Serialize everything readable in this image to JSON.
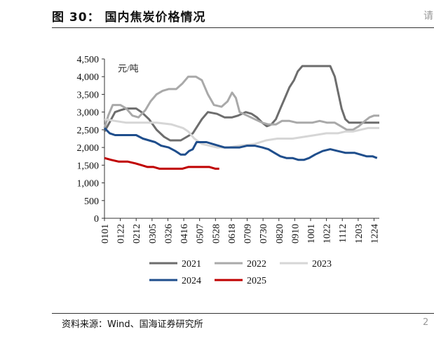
{
  "page": {
    "figure_title": "图 30：   国内焦炭价格情况",
    "source": "资料来源：Wind、国海证券研究所",
    "corner_mark": "请",
    "page_number": "2"
  },
  "chart_data": {
    "type": "line",
    "title": "",
    "unit_label": "元/吨",
    "xlabel": "",
    "ylabel": "元/吨",
    "ylim": [
      0,
      4500
    ],
    "y_ticks": [
      0,
      500,
      1000,
      1500,
      2000,
      2500,
      3000,
      3500,
      4000,
      4500
    ],
    "y_tick_labels": [
      "0",
      "500",
      "1,000",
      "1,500",
      "2,000",
      "2,500",
      "3,000",
      "3,500",
      "4,000",
      "4,500"
    ],
    "x_ticks": [
      "0101",
      "0122",
      "0212",
      "0305",
      "0326",
      "0416",
      "0507",
      "0528",
      "0618",
      "0709",
      "0730",
      "0820",
      "0910",
      "1001",
      "1022",
      "1112",
      "1203",
      "1224"
    ],
    "x_tick_day_of_year": [
      1,
      22,
      43,
      64,
      85,
      106,
      127,
      148,
      169,
      190,
      211,
      232,
      253,
      274,
      295,
      316,
      337,
      358
    ],
    "x_range_day_of_year": [
      1,
      365
    ],
    "series": [
      {
        "name": "2021",
        "color": "#6d6d6d",
        "points": [
          [
            1,
            2450
          ],
          [
            5,
            2600
          ],
          [
            10,
            2800
          ],
          [
            15,
            3000
          ],
          [
            22,
            3050
          ],
          [
            30,
            3100
          ],
          [
            43,
            3100
          ],
          [
            50,
            3000
          ],
          [
            60,
            2800
          ],
          [
            70,
            2500
          ],
          [
            80,
            2300
          ],
          [
            88,
            2200
          ],
          [
            95,
            2200
          ],
          [
            102,
            2200
          ],
          [
            110,
            2300
          ],
          [
            118,
            2400
          ],
          [
            124,
            2600
          ],
          [
            130,
            2800
          ],
          [
            138,
            3000
          ],
          [
            150,
            2950
          ],
          [
            160,
            2850
          ],
          [
            170,
            2850
          ],
          [
            178,
            2900
          ],
          [
            188,
            3000
          ],
          [
            196,
            2950
          ],
          [
            203,
            2850
          ],
          [
            210,
            2700
          ],
          [
            216,
            2600
          ],
          [
            222,
            2650
          ],
          [
            228,
            2800
          ],
          [
            234,
            3100
          ],
          [
            240,
            3400
          ],
          [
            246,
            3700
          ],
          [
            252,
            3900
          ],
          [
            257,
            4150
          ],
          [
            263,
            4300
          ],
          [
            275,
            4300
          ],
          [
            288,
            4300
          ],
          [
            300,
            4300
          ],
          [
            306,
            4000
          ],
          [
            310,
            3600
          ],
          [
            315,
            3100
          ],
          [
            320,
            2800
          ],
          [
            325,
            2700
          ],
          [
            335,
            2700
          ],
          [
            345,
            2700
          ],
          [
            355,
            2700
          ],
          [
            365,
            2700
          ]
        ]
      },
      {
        "name": "2022",
        "color": "#a9a9a9",
        "points": [
          [
            1,
            2550
          ],
          [
            6,
            2900
          ],
          [
            12,
            3200
          ],
          [
            22,
            3200
          ],
          [
            30,
            3100
          ],
          [
            38,
            2900
          ],
          [
            46,
            2850
          ],
          [
            55,
            3050
          ],
          [
            62,
            3300
          ],
          [
            70,
            3500
          ],
          [
            78,
            3600
          ],
          [
            86,
            3650
          ],
          [
            96,
            3650
          ],
          [
            104,
            3800
          ],
          [
            112,
            4000
          ],
          [
            122,
            4000
          ],
          [
            130,
            3900
          ],
          [
            138,
            3500
          ],
          [
            146,
            3200
          ],
          [
            156,
            3150
          ],
          [
            164,
            3300
          ],
          [
            170,
            3550
          ],
          [
            175,
            3400
          ],
          [
            180,
            3000
          ],
          [
            190,
            2900
          ],
          [
            200,
            2800
          ],
          [
            210,
            2700
          ],
          [
            218,
            2650
          ],
          [
            228,
            2650
          ],
          [
            236,
            2750
          ],
          [
            246,
            2750
          ],
          [
            256,
            2700
          ],
          [
            266,
            2700
          ],
          [
            276,
            2700
          ],
          [
            286,
            2750
          ],
          [
            296,
            2700
          ],
          [
            306,
            2700
          ],
          [
            314,
            2600
          ],
          [
            322,
            2500
          ],
          [
            330,
            2500
          ],
          [
            338,
            2600
          ],
          [
            346,
            2750
          ],
          [
            352,
            2850
          ],
          [
            358,
            2900
          ],
          [
            365,
            2900
          ]
        ]
      },
      {
        "name": "2023",
        "color": "#d6d6d6",
        "points": [
          [
            1,
            2800
          ],
          [
            15,
            2750
          ],
          [
            30,
            2700
          ],
          [
            50,
            2700
          ],
          [
            70,
            2700
          ],
          [
            90,
            2650
          ],
          [
            105,
            2550
          ],
          [
            112,
            2450
          ],
          [
            120,
            2250
          ],
          [
            130,
            2100
          ],
          [
            140,
            2050
          ],
          [
            150,
            2000
          ],
          [
            165,
            2000
          ],
          [
            180,
            2050
          ],
          [
            200,
            2100
          ],
          [
            215,
            2200
          ],
          [
            230,
            2250
          ],
          [
            250,
            2250
          ],
          [
            265,
            2300
          ],
          [
            280,
            2350
          ],
          [
            295,
            2400
          ],
          [
            310,
            2400
          ],
          [
            320,
            2450
          ],
          [
            330,
            2450
          ],
          [
            340,
            2500
          ],
          [
            350,
            2550
          ],
          [
            365,
            2550
          ]
        ]
      },
      {
        "name": "2024",
        "color": "#1f4e8c",
        "points": [
          [
            1,
            2550
          ],
          [
            8,
            2400
          ],
          [
            15,
            2350
          ],
          [
            30,
            2350
          ],
          [
            43,
            2350
          ],
          [
            52,
            2250
          ],
          [
            60,
            2200
          ],
          [
            68,
            2150
          ],
          [
            76,
            2050
          ],
          [
            86,
            2000
          ],
          [
            95,
            1900
          ],
          [
            102,
            1800
          ],
          [
            108,
            1800
          ],
          [
            113,
            1900
          ],
          [
            118,
            1950
          ],
          [
            123,
            2150
          ],
          [
            128,
            2150
          ],
          [
            136,
            2150
          ],
          [
            144,
            2100
          ],
          [
            152,
            2050
          ],
          [
            160,
            2000
          ],
          [
            170,
            2000
          ],
          [
            180,
            2000
          ],
          [
            190,
            2050
          ],
          [
            200,
            2050
          ],
          [
            210,
            2000
          ],
          [
            218,
            1950
          ],
          [
            226,
            1850
          ],
          [
            234,
            1750
          ],
          [
            242,
            1700
          ],
          [
            250,
            1700
          ],
          [
            258,
            1650
          ],
          [
            265,
            1650
          ],
          [
            272,
            1700
          ],
          [
            280,
            1800
          ],
          [
            290,
            1900
          ],
          [
            300,
            1950
          ],
          [
            310,
            1900
          ],
          [
            320,
            1850
          ],
          [
            332,
            1850
          ],
          [
            340,
            1800
          ],
          [
            348,
            1750
          ],
          [
            356,
            1750
          ],
          [
            362,
            1700
          ]
        ]
      },
      {
        "name": "2025",
        "color": "#c00000",
        "points": [
          [
            1,
            1700
          ],
          [
            10,
            1650
          ],
          [
            20,
            1600
          ],
          [
            32,
            1600
          ],
          [
            42,
            1550
          ],
          [
            50,
            1500
          ],
          [
            58,
            1450
          ],
          [
            66,
            1450
          ],
          [
            74,
            1400
          ],
          [
            84,
            1400
          ],
          [
            94,
            1400
          ],
          [
            104,
            1400
          ],
          [
            112,
            1450
          ],
          [
            120,
            1450
          ],
          [
            130,
            1450
          ],
          [
            140,
            1450
          ],
          [
            148,
            1400
          ],
          [
            153,
            1400
          ]
        ]
      }
    ],
    "legend_position": "bottom",
    "grid": false
  }
}
